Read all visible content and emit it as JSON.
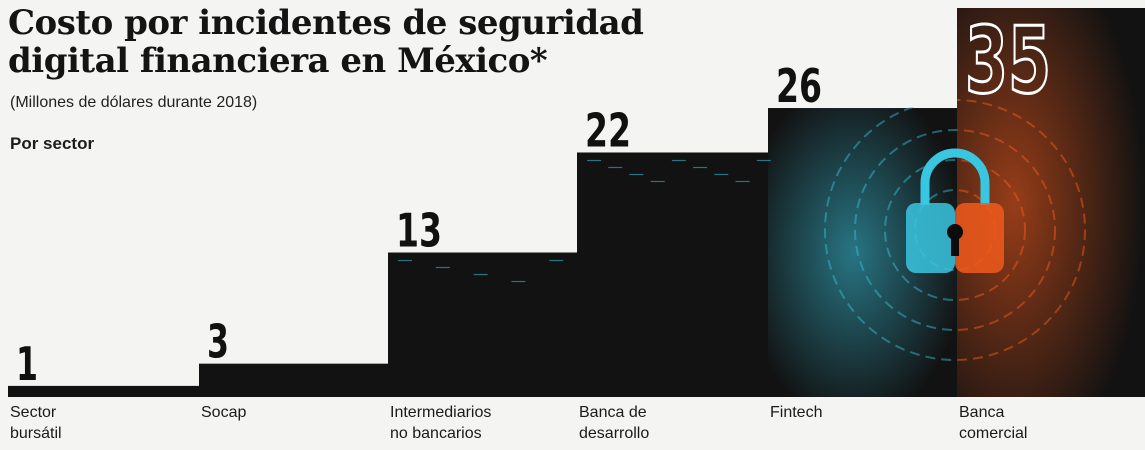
{
  "chart_data": {
    "type": "bar",
    "title": "Costo por incidentes de seguridad\ndigital financiera en México*",
    "subtitle": "(Millones de dólares durante 2018)",
    "section_label": "Por sector",
    "categories": [
      "Sector\nbursátil",
      "Socap",
      "Intermediarios\nno bancarios",
      "Banca de\ndesarrollo",
      "Fintech",
      "Banca\ncomercial"
    ],
    "values": [
      1,
      3,
      13,
      22,
      26,
      35
    ],
    "value_labels": [
      "1",
      "3",
      "13",
      "22",
      "26",
      "35"
    ],
    "ylim": [
      0,
      35
    ],
    "grid": false,
    "legend": "none"
  },
  "colors": {
    "bar": "#121212",
    "accent_cyan": "#39c6e0",
    "accent_orange": "#f05a1c",
    "background": "#f4f4f2"
  }
}
